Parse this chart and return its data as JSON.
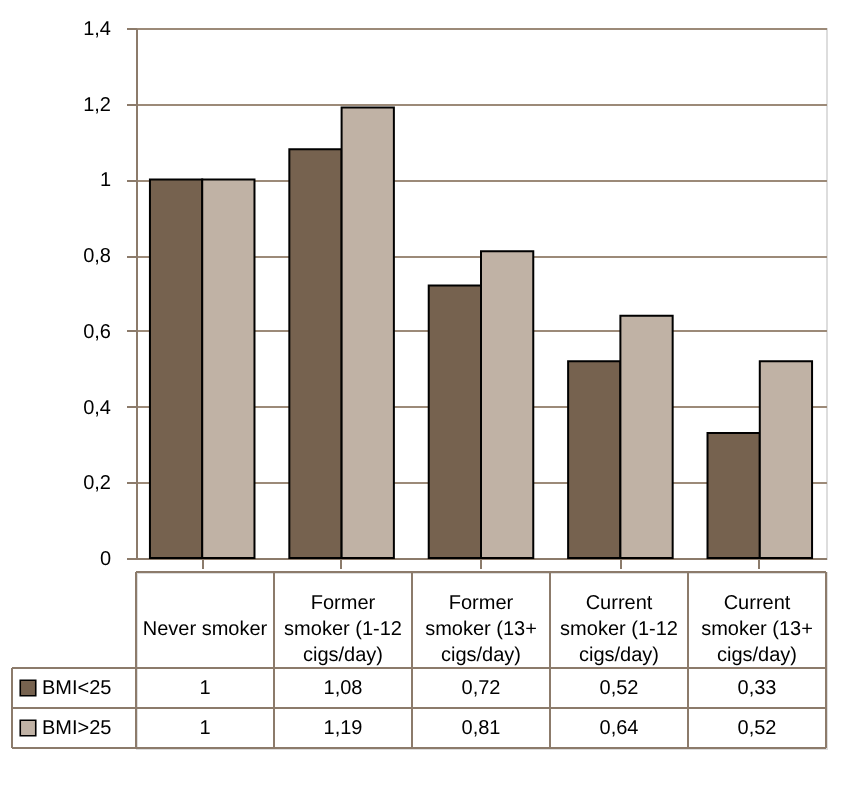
{
  "chart_data": {
    "type": "bar",
    "categories": [
      "Never smoker",
      "Former smoker (1-12 cigs/day)",
      "Former smoker (13+ cigs/day)",
      "Current smoker (1-12 cigs/day)",
      "Current smoker (13+ cigs/day)"
    ],
    "series": [
      {
        "name": "BMI<25",
        "color": "#76624f",
        "values": [
          1,
          1.08,
          0.72,
          0.52,
          0.33
        ],
        "value_labels": [
          "1",
          "1,08",
          "0,72",
          "0,52",
          "0,33"
        ]
      },
      {
        "name": "BMI>25",
        "color": "#c0b2a5",
        "values": [
          1,
          1.19,
          0.81,
          0.64,
          0.52
        ],
        "value_labels": [
          "1",
          "1,19",
          "0,81",
          "0,64",
          "0,52"
        ]
      }
    ],
    "ylim": [
      0,
      1.4
    ],
    "yticks": [
      0,
      {
        "value": 0.2,
        "label": "0,2"
      },
      {
        "value": 0.4,
        "label": "0,4"
      },
      {
        "value": 0.6,
        "label": "0,6"
      },
      {
        "value": 0.8,
        "label": "0,8"
      },
      1,
      {
        "value": 1.2,
        "label": "1,2"
      },
      {
        "value": 1.4,
        "label": "1,4"
      }
    ],
    "grid": "y",
    "legend": "bottom left"
  }
}
